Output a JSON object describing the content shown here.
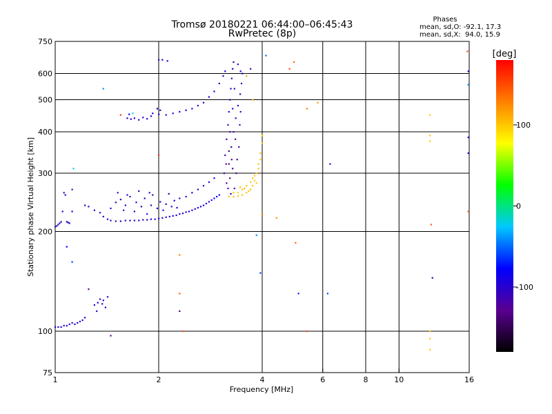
{
  "chart_data": {
    "type": "scatter",
    "title": "Tromsø 20180221 06:44:00–06:45:43",
    "subtitle": "RwPretec (8p)",
    "xlabel": "Frequency [MHz]",
    "ylabel": "Stationary phase Virtual Height [km]",
    "x_scale": "log",
    "y_scale": "log",
    "xlim": [
      1,
      16
    ],
    "ylim": [
      75,
      750
    ],
    "x_ticks": [
      1,
      2,
      4,
      6,
      8,
      10,
      16
    ],
    "y_ticks": [
      75,
      100,
      200,
      300,
      400,
      500,
      600,
      750
    ],
    "grid": true,
    "stats": {
      "heading": "Phases",
      "line_o": "mean, sd,O: -92.1, 17.3",
      "line_x": "mean, sd,X:  94.0, 15.9"
    },
    "colorbar": {
      "label": "[deg]",
      "range": [
        -180,
        180
      ],
      "ticks": [
        100,
        0,
        -100
      ],
      "colors": [
        "#000000",
        "#5a0090",
        "#0000ff",
        "#00c8ff",
        "#00ff00",
        "#ffff00",
        "#ff8000",
        "#ff0000"
      ]
    },
    "series": [
      {
        "points": [
          [
            1.0,
            207,
            -105
          ],
          [
            1.01,
            208,
            -100
          ],
          [
            1.02,
            210,
            -108
          ],
          [
            1.03,
            212,
            -98
          ],
          [
            1.04,
            214,
            -102
          ],
          [
            1.05,
            230,
            -95
          ],
          [
            1.06,
            262,
            -110
          ],
          [
            1.07,
            258,
            -100
          ],
          [
            1.08,
            214,
            -105
          ],
          [
            1.09,
            213,
            -100
          ],
          [
            1.1,
            212,
            -98
          ],
          [
            1.12,
            230,
            -90
          ],
          [
            1.12,
            268,
            -110
          ],
          [
            1.13,
            310,
            -20
          ],
          [
            1.0,
            103,
            -100
          ],
          [
            1.02,
            103,
            -95
          ],
          [
            1.04,
            103,
            -105
          ],
          [
            1.06,
            104,
            -100
          ],
          [
            1.08,
            104,
            -98
          ],
          [
            1.1,
            105,
            -102
          ],
          [
            1.12,
            106,
            -100
          ],
          [
            1.14,
            105,
            -96
          ],
          [
            1.16,
            106,
            -104
          ],
          [
            1.18,
            107,
            -100
          ],
          [
            1.2,
            108,
            -95
          ],
          [
            1.22,
            110,
            -100
          ],
          [
            1.08,
            180,
            -80
          ],
          [
            1.12,
            162,
            -60
          ],
          [
            1.3,
            120,
            -100
          ],
          [
            1.33,
            122,
            -95
          ],
          [
            1.35,
            125,
            -105
          ],
          [
            1.37,
            121,
            -100
          ],
          [
            1.38,
            124,
            -98
          ],
          [
            1.4,
            118,
            -102
          ],
          [
            1.42,
            127,
            -110
          ],
          [
            1.25,
            134,
            -120
          ],
          [
            1.32,
            115,
            -105
          ],
          [
            1.45,
            97,
            -130
          ],
          [
            1.22,
            240,
            -110
          ],
          [
            1.25,
            238,
            -105
          ],
          [
            1.3,
            232,
            -100
          ],
          [
            1.35,
            228,
            -108
          ],
          [
            1.38,
            222,
            -100
          ],
          [
            1.42,
            218,
            -105
          ],
          [
            1.45,
            216,
            -110
          ],
          [
            1.5,
            215,
            -102
          ],
          [
            1.55,
            215,
            -100
          ],
          [
            1.6,
            216,
            -106
          ],
          [
            1.65,
            216,
            -100
          ],
          [
            1.7,
            216,
            -104
          ],
          [
            1.75,
            216,
            -100
          ],
          [
            1.8,
            217,
            -102
          ],
          [
            1.85,
            217,
            -98
          ],
          [
            1.9,
            218,
            -100
          ],
          [
            1.95,
            218,
            -104
          ],
          [
            2.0,
            219,
            -100
          ],
          [
            2.05,
            220,
            -102
          ],
          [
            2.1,
            221,
            -98
          ],
          [
            2.15,
            222,
            -100
          ],
          [
            2.2,
            223,
            -95
          ],
          [
            2.25,
            224,
            -100
          ],
          [
            2.3,
            226,
            -98
          ],
          [
            2.35,
            227,
            -92
          ],
          [
            2.4,
            229,
            -96
          ],
          [
            2.45,
            230,
            -90
          ],
          [
            2.5,
            232,
            -94
          ],
          [
            2.55,
            234,
            -88
          ],
          [
            2.6,
            236,
            -92
          ],
          [
            2.65,
            238,
            -85
          ],
          [
            2.7,
            240,
            -90
          ],
          [
            2.75,
            243,
            -85
          ],
          [
            2.8,
            246,
            -88
          ],
          [
            2.85,
            249,
            -82
          ],
          [
            2.9,
            252,
            -86
          ],
          [
            2.95,
            255,
            -80
          ],
          [
            3.0,
            258,
            -84
          ],
          [
            1.45,
            235,
            -100
          ],
          [
            1.5,
            245,
            -110
          ],
          [
            1.55,
            250,
            -95
          ],
          [
            1.58,
            232,
            -105
          ],
          [
            1.6,
            240,
            -100
          ],
          [
            1.65,
            255,
            -108
          ],
          [
            1.7,
            230,
            -102
          ],
          [
            1.72,
            245,
            -100
          ],
          [
            1.78,
            238,
            -105
          ],
          [
            1.82,
            252,
            -100
          ],
          [
            1.85,
            226,
            -95
          ],
          [
            1.9,
            240,
            -100
          ],
          [
            1.92,
            258,
            -110
          ],
          [
            1.98,
            235,
            -105
          ],
          [
            2.02,
            246,
            -100
          ],
          [
            2.06,
            232,
            -98
          ],
          [
            2.1,
            242,
            -102
          ],
          [
            2.14,
            260,
            -100
          ],
          [
            2.18,
            238,
            -106
          ],
          [
            2.22,
            248,
            -100
          ],
          [
            2.26,
            236,
            -95
          ],
          [
            2.3,
            252,
            -104
          ],
          [
            2.4,
            255,
            -100
          ],
          [
            2.5,
            262,
            -98
          ],
          [
            2.6,
            268,
            -100
          ],
          [
            2.7,
            275,
            -95
          ],
          [
            2.8,
            282,
            -100
          ],
          [
            2.9,
            290,
            -96
          ],
          [
            1.52,
            262,
            -105
          ],
          [
            1.62,
            258,
            -100
          ],
          [
            1.75,
            265,
            -98
          ],
          [
            1.88,
            262,
            -102
          ],
          [
            1.62,
            440,
            -100
          ],
          [
            1.66,
            437,
            -105
          ],
          [
            1.7,
            440,
            -98
          ],
          [
            1.75,
            435,
            -102
          ],
          [
            1.8,
            442,
            -100
          ],
          [
            1.85,
            438,
            -96
          ],
          [
            1.9,
            446,
            -104
          ],
          [
            2.0,
            452,
            -100
          ],
          [
            2.1,
            450,
            -98
          ],
          [
            2.2,
            455,
            -102
          ],
          [
            2.3,
            460,
            -100
          ],
          [
            2.4,
            465,
            -95
          ],
          [
            2.5,
            470,
            -100
          ],
          [
            2.6,
            480,
            -96
          ],
          [
            2.7,
            490,
            -100
          ],
          [
            2.8,
            510,
            -95
          ],
          [
            2.9,
            530,
            -100
          ],
          [
            3.0,
            560,
            -98
          ],
          [
            3.08,
            590,
            -100
          ],
          [
            3.12,
            610,
            -102
          ],
          [
            1.98,
            470,
            -100
          ],
          [
            2.02,
            465,
            -105
          ],
          [
            1.64,
            452,
            -80
          ],
          [
            1.92,
            455,
            -90
          ],
          [
            2.05,
            660,
            -100
          ],
          [
            2.12,
            655,
            -95
          ],
          [
            3.1,
            300,
            -110
          ],
          [
            3.12,
            340,
            -115
          ],
          [
            3.15,
            380,
            -105
          ],
          [
            3.18,
            420,
            -110
          ],
          [
            3.2,
            460,
            -100
          ],
          [
            3.22,
            500,
            -108
          ],
          [
            3.24,
            540,
            -102
          ],
          [
            3.26,
            580,
            -100
          ],
          [
            3.28,
            620,
            -104
          ],
          [
            3.3,
            650,
            -98
          ],
          [
            3.15,
            280,
            -120
          ],
          [
            3.2,
            320,
            -125
          ],
          [
            3.25,
            360,
            -110
          ],
          [
            3.3,
            400,
            -115
          ],
          [
            3.35,
            440,
            -105
          ],
          [
            3.4,
            480,
            -100
          ],
          [
            3.45,
            520,
            -108
          ],
          [
            3.48,
            560,
            -110
          ],
          [
            3.5,
            600,
            -102
          ],
          [
            3.22,
            290,
            -130
          ],
          [
            3.28,
            310,
            -135
          ],
          [
            3.18,
            270,
            -120
          ],
          [
            3.24,
            260,
            -110
          ],
          [
            3.32,
            270,
            -115
          ],
          [
            3.36,
            300,
            -120
          ],
          [
            3.38,
            330,
            -110
          ],
          [
            3.42,
            360,
            -115
          ],
          [
            3.44,
            420,
            -110
          ],
          [
            3.46,
            460,
            -105
          ],
          [
            3.2,
            350,
            -140
          ],
          [
            3.26,
            330,
            -135
          ],
          [
            3.34,
            380,
            -125
          ],
          [
            3.14,
            320,
            -130
          ],
          [
            3.22,
            400,
            -110
          ],
          [
            3.28,
            470,
            -108
          ],
          [
            3.32,
            540,
            -112
          ],
          [
            3.4,
            640,
            -104
          ],
          [
            3.46,
            610,
            -100
          ],
          [
            3.2,
            255,
            100
          ],
          [
            3.3,
            255,
            105
          ],
          [
            3.4,
            256,
            98
          ],
          [
            3.5,
            258,
            102
          ],
          [
            3.6,
            262,
            100
          ],
          [
            3.7,
            268,
            104
          ],
          [
            3.75,
            275,
            98
          ],
          [
            3.8,
            285,
            100
          ],
          [
            3.85,
            300,
            102
          ],
          [
            3.9,
            320,
            100
          ],
          [
            3.95,
            345,
            104
          ],
          [
            4.0,
            370,
            100
          ],
          [
            4.0,
            390,
            98
          ],
          [
            3.4,
            262,
            95
          ],
          [
            3.5,
            268,
            100
          ],
          [
            3.6,
            275,
            102
          ],
          [
            3.7,
            282,
            96
          ],
          [
            3.8,
            295,
            100
          ],
          [
            3.9,
            310,
            104
          ],
          [
            3.95,
            330,
            100
          ],
          [
            3.55,
            270,
            110
          ],
          [
            3.65,
            265,
            100
          ],
          [
            3.75,
            290,
            102
          ],
          [
            3.85,
            280,
            98
          ],
          [
            3.3,
            262,
            100
          ],
          [
            3.45,
            272,
            104
          ],
          [
            3.6,
            590,
            110
          ],
          [
            3.75,
            500,
            105
          ],
          [
            5.0,
            185,
            140
          ],
          [
            4.8,
            620,
            150
          ],
          [
            5.4,
            470,
            130
          ],
          [
            5.8,
            490,
            120
          ],
          [
            6.3,
            320,
            -110
          ],
          [
            6.2,
            130,
            -60
          ],
          [
            5.1,
            130,
            -70
          ],
          [
            4.4,
            220,
            120
          ],
          [
            4.0,
            225,
            130
          ],
          [
            4.1,
            680,
            -50
          ],
          [
            3.95,
            150,
            -60
          ],
          [
            3.85,
            195,
            -40
          ],
          [
            3.7,
            620,
            -120
          ],
          [
            2.0,
            340,
            160
          ],
          [
            2.0,
            660,
            -110
          ],
          [
            2.3,
            170,
            130
          ],
          [
            2.3,
            115,
            -140
          ],
          [
            2.3,
            130,
            140
          ],
          [
            2.35,
            100,
            150
          ],
          [
            1.38,
            540,
            -40
          ],
          [
            1.55,
            450,
            160
          ],
          [
            1.68,
            455,
            -20
          ],
          [
            12.3,
            450,
            100
          ],
          [
            12.3,
            390,
            100
          ],
          [
            12.3,
            375,
            100
          ],
          [
            12.4,
            210,
            140
          ],
          [
            12.3,
            100,
            100
          ],
          [
            12.3,
            95,
            100
          ],
          [
            12.3,
            88,
            100
          ],
          [
            12.5,
            145,
            -100
          ],
          [
            15.8,
            700,
            150
          ],
          [
            15.9,
            610,
            -90
          ],
          [
            15.9,
            555,
            -40
          ],
          [
            15.9,
            385,
            -80
          ],
          [
            15.9,
            345,
            -90
          ],
          [
            15.9,
            230,
            140
          ],
          [
            5.4,
            100,
            150
          ],
          [
            4.95,
            650,
            140
          ]
        ]
      }
    ]
  }
}
